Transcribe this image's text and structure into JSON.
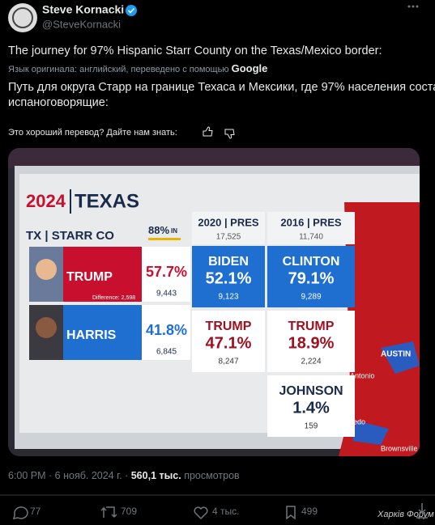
{
  "author": {
    "name": "Steve Kornacki",
    "handle": "@SteveKornacki"
  },
  "tweet": {
    "text": "The journey for 97% Hispanic Starr County on the Texas/Mexico border:",
    "translation_note": "Язык оригинала: английский, переведено с помощью",
    "translation_provider": "Google",
    "translation": "Путь для округа Старр на границе Техаса и Мексики, где 97% населения составляют испаноговорящие:",
    "feedback": "Это хороший перевод? Дайте нам знать:"
  },
  "image": {
    "year": "2024",
    "state": "TEXAS",
    "area_state": "TX",
    "area_county": "STARR CO",
    "reporting": "88%",
    "reporting_suffix": "IN",
    "current": [
      {
        "name": "TRUMP",
        "pct": "57.7%",
        "votes": "9,443",
        "note": "Difference: 2,598"
      },
      {
        "name": "HARRIS",
        "pct": "41.8%",
        "votes": "6,845"
      }
    ],
    "col2020": {
      "header": "2020 | PRES",
      "total": "17,525",
      "rows": [
        {
          "name": "BIDEN",
          "pct": "52.1%",
          "votes": "9,123"
        },
        {
          "name": "TRUMP",
          "pct": "47.1%",
          "votes": "8,247"
        }
      ]
    },
    "col2016": {
      "header": "2016 | PRES",
      "total": "11,740",
      "rows": [
        {
          "name": "CLINTON",
          "pct": "79.1%",
          "votes": "9,289"
        },
        {
          "name": "TRUMP",
          "pct": "18.9%",
          "votes": "2,224"
        },
        {
          "name": "JOHNSON",
          "pct": "1.4%",
          "votes": "159"
        }
      ]
    },
    "map_labels": [
      "AUSTIN",
      "Antonio",
      "aredo",
      "Brownsville"
    ]
  },
  "meta": {
    "time": "6:00 PM · 6 нояб. 2024 г. ·",
    "views": "560,1 тыс.",
    "views_label": "просмотров"
  },
  "actions": {
    "replies": "77",
    "reposts": "709",
    "likes": "4 тыс.",
    "bookmarks": "499"
  },
  "watermark": "Харків Форум"
}
